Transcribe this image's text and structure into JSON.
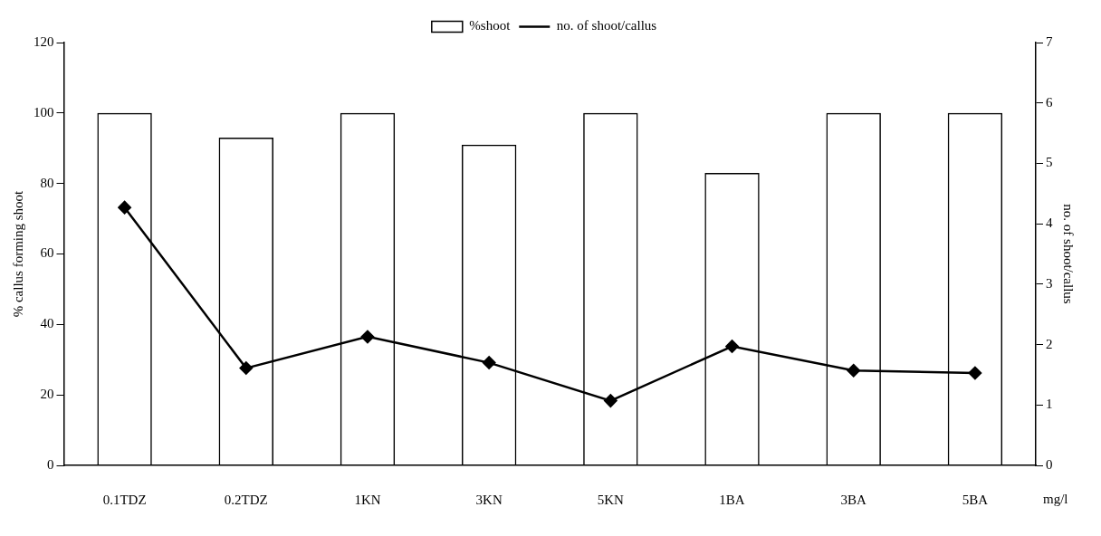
{
  "chart_data": {
    "type": "bar",
    "categories": [
      "0.1TDZ",
      "0.2TDZ",
      "1KN",
      "3KN",
      "5KN",
      "1BA",
      "3BA",
      "5BA"
    ],
    "xlabel": "mg/l",
    "ylabel": "% callus forming shoot",
    "y2label": "no. of shoot/callus",
    "series": [
      {
        "name": "%shoot",
        "color": "#000000",
        "values": [
          100,
          93,
          100,
          91,
          100,
          83,
          100,
          100
        ]
      },
      {
        "name": "no. of shoot/callus",
        "type": "line",
        "axis": "y2",
        "color": "#000000",
        "marker": "diamond",
        "values": [
          4.27,
          1.61,
          2.13,
          1.7,
          1.07,
          1.97,
          1.57,
          1.53
        ]
      }
    ],
    "ylim": [
      0,
      120
    ],
    "yticks": [
      0,
      20,
      40,
      60,
      80,
      100,
      120
    ],
    "y2lim": [
      0,
      7
    ],
    "y2ticks": [
      0,
      1,
      2,
      3,
      4,
      5,
      6,
      7
    ],
    "grid": false,
    "legend": "top"
  }
}
